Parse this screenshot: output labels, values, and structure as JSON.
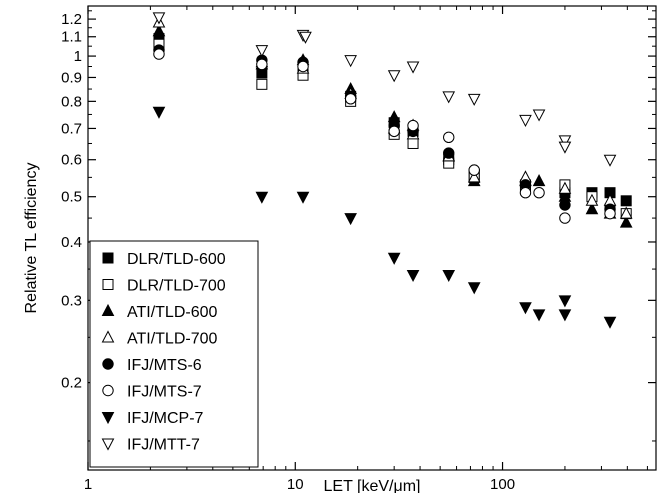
{
  "chart_data": {
    "type": "scatter",
    "xlabel": "LET [keV/μm]",
    "ylabel": "Relative TL efficiency",
    "xscale": "log",
    "yscale": "log",
    "xlim": [
      1,
      550
    ],
    "ylim": [
      0.13,
      1.28
    ],
    "x_ticks": [
      {
        "value": 1,
        "label": "1"
      },
      {
        "value": 10,
        "label": "10"
      },
      {
        "value": 100,
        "label": "100"
      }
    ],
    "y_ticks": [
      {
        "value": 0.2,
        "label": "0.2"
      },
      {
        "value": 0.3,
        "label": "0.3"
      },
      {
        "value": 0.4,
        "label": "0.4"
      },
      {
        "value": 0.5,
        "label": "0.5"
      },
      {
        "value": 0.6,
        "label": "0.6"
      },
      {
        "value": 0.7,
        "label": "0.7"
      },
      {
        "value": 0.8,
        "label": "0.8"
      },
      {
        "value": 0.9,
        "label": "0.9"
      },
      {
        "value": 1.0,
        "label": "1"
      },
      {
        "value": 1.1,
        "label": "1.1"
      },
      {
        "value": 1.2,
        "label": "1.2"
      }
    ],
    "legend_position": "bottom-left",
    "series": [
      {
        "name": "DLR/TLD-600",
        "marker": "square",
        "filled": true,
        "points": [
          [
            2.2,
            1.09
          ],
          [
            6.9,
            0.92
          ],
          [
            10.9,
            0.95
          ],
          [
            18.5,
            0.82
          ],
          [
            30,
            0.72
          ],
          [
            37,
            0.69
          ],
          [
            55,
            0.6
          ],
          [
            73,
            0.55
          ],
          [
            129,
            0.53
          ],
          [
            200,
            0.51
          ],
          [
            270,
            0.51
          ],
          [
            330,
            0.51
          ],
          [
            395,
            0.49
          ]
        ]
      },
      {
        "name": "DLR/TLD-700",
        "marker": "square",
        "filled": false,
        "points": [
          [
            2.2,
            1.06
          ],
          [
            6.9,
            0.87
          ],
          [
            10.9,
            0.91
          ],
          [
            18.5,
            0.8
          ],
          [
            30,
            0.68
          ],
          [
            37,
            0.65
          ],
          [
            55,
            0.59
          ],
          [
            73,
            0.55
          ],
          [
            129,
            0.52
          ],
          [
            200,
            0.53
          ],
          [
            270,
            0.5
          ],
          [
            330,
            0.47
          ],
          [
            395,
            0.46
          ]
        ]
      },
      {
        "name": "ATI/TLD-600",
        "marker": "triangle-up",
        "filled": true,
        "points": [
          [
            2.2,
            1.13
          ],
          [
            6.9,
            0.96
          ],
          [
            10.9,
            0.98
          ],
          [
            18.5,
            0.85
          ],
          [
            30,
            0.74
          ],
          [
            37,
            0.71
          ],
          [
            55,
            0.61
          ],
          [
            73,
            0.54
          ],
          [
            129,
            0.54
          ],
          [
            150,
            0.54
          ],
          [
            200,
            0.5
          ],
          [
            270,
            0.47
          ],
          [
            330,
            0.46
          ],
          [
            395,
            0.44
          ]
        ]
      },
      {
        "name": "ATI/TLD-700",
        "marker": "triangle-up",
        "filled": false,
        "points": [
          [
            2.2,
            1.18
          ],
          [
            6.9,
            0.97
          ],
          [
            10.9,
            0.94
          ],
          [
            18.5,
            0.83
          ],
          [
            30,
            0.7
          ],
          [
            37,
            0.68
          ],
          [
            55,
            0.61
          ],
          [
            73,
            0.55
          ],
          [
            129,
            0.55
          ],
          [
            200,
            0.52
          ],
          [
            270,
            0.49
          ],
          [
            330,
            0.49
          ],
          [
            395,
            0.46
          ]
        ]
      },
      {
        "name": "IFJ/MTS-6",
        "marker": "circle",
        "filled": true,
        "points": [
          [
            2.2,
            1.03
          ],
          [
            6.9,
            0.98
          ],
          [
            10.9,
            0.97
          ],
          [
            18.5,
            0.82
          ],
          [
            30,
            0.71
          ],
          [
            37,
            0.69
          ],
          [
            55,
            0.62
          ],
          [
            73,
            0.57
          ],
          [
            129,
            0.53
          ],
          [
            200,
            0.48
          ],
          [
            330,
            0.47
          ]
        ]
      },
      {
        "name": "IFJ/MTS-7",
        "marker": "circle",
        "filled": false,
        "points": [
          [
            2.2,
            1.01
          ],
          [
            6.9,
            0.96
          ],
          [
            10.9,
            0.95
          ],
          [
            18.5,
            0.81
          ],
          [
            30,
            0.69
          ],
          [
            37,
            0.71
          ],
          [
            55,
            0.67
          ],
          [
            73,
            0.57
          ],
          [
            129,
            0.51
          ],
          [
            150,
            0.51
          ],
          [
            200,
            0.45
          ],
          [
            330,
            0.46
          ]
        ]
      },
      {
        "name": "IFJ/MCP-7",
        "marker": "triangle-down",
        "filled": true,
        "points": [
          [
            2.2,
            0.76
          ],
          [
            6.9,
            0.5
          ],
          [
            10.9,
            0.5
          ],
          [
            18.5,
            0.45
          ],
          [
            30,
            0.37
          ],
          [
            37,
            0.34
          ],
          [
            55,
            0.34
          ],
          [
            73,
            0.32
          ],
          [
            129,
            0.29
          ],
          [
            150,
            0.28
          ],
          [
            200,
            0.3
          ],
          [
            200,
            0.28
          ],
          [
            330,
            0.27
          ]
        ]
      },
      {
        "name": "IFJ/MTT-7",
        "marker": "triangle-down",
        "filled": false,
        "points": [
          [
            2.2,
            1.21
          ],
          [
            6.9,
            1.03
          ],
          [
            10.9,
            1.11
          ],
          [
            11.2,
            1.1
          ],
          [
            18.5,
            0.98
          ],
          [
            30,
            0.91
          ],
          [
            37,
            0.95
          ],
          [
            55,
            0.82
          ],
          [
            73,
            0.81
          ],
          [
            129,
            0.73
          ],
          [
            150,
            0.75
          ],
          [
            200,
            0.66
          ],
          [
            200,
            0.64
          ],
          [
            330,
            0.6
          ]
        ]
      }
    ]
  }
}
